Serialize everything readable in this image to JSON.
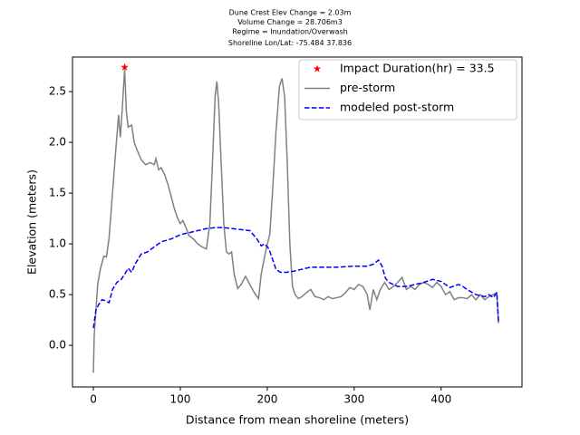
{
  "chart_data": {
    "type": "line",
    "title": [
      "Dune Crest Elev Change = 2.03m",
      "Volume Change = 28.706m3",
      "Regime = Inundation/Overwash",
      "Shoreline Lon/Lat: -75.484 37.836"
    ],
    "x_label": "Distance from mean shoreline (meters)",
    "y_label": "Elevation (meters)",
    "xlim": [
      -24,
      493
    ],
    "ylim": [
      -0.41,
      2.84
    ],
    "xticks": [
      0,
      100,
      200,
      300,
      400
    ],
    "yticks": [
      {
        "value": 0,
        "label": "0.0"
      },
      0.5,
      {
        "value": 1,
        "label": "1.0"
      },
      1.5,
      {
        "value": 2,
        "label": "2.0"
      },
      2.5
    ],
    "legend": "upper right",
    "series": [
      {
        "name": "Impact Duration(hr) = 33.5",
        "color": "#ff0000",
        "linestyle": "none",
        "marker": "star",
        "x": [
          36
        ],
        "values": [
          2.74
        ]
      },
      {
        "name": "pre-storm",
        "color": "#808080",
        "linestyle": "solid",
        "marker": "none",
        "x": [
          0,
          1,
          3,
          5,
          8,
          12,
          15,
          18,
          22,
          26,
          29,
          31,
          33,
          36,
          38,
          40,
          44,
          47,
          50,
          55,
          60,
          65,
          70,
          72,
          75,
          78,
          82,
          86,
          90,
          93,
          97,
          100,
          103,
          107,
          110,
          115,
          120,
          125,
          130,
          134,
          137,
          140,
          142,
          144,
          147,
          150,
          153,
          156,
          159,
          162,
          166,
          170,
          175,
          180,
          185,
          190,
          193,
          198,
          203,
          206,
          210,
          214,
          217,
          220,
          223,
          226,
          229,
          232,
          236,
          240,
          245,
          250,
          255,
          260,
          265,
          270,
          275,
          280,
          285,
          290,
          295,
          300,
          305,
          310,
          315,
          318,
          322,
          326,
          330,
          335,
          340,
          345,
          350,
          355,
          360,
          365,
          370,
          375,
          380,
          385,
          390,
          395,
          400,
          405,
          410,
          415,
          420,
          425,
          430,
          435,
          440,
          445,
          450,
          455,
          460,
          464,
          466
        ],
        "values": [
          -0.27,
          0.1,
          0.35,
          0.6,
          0.75,
          0.88,
          0.87,
          1.05,
          1.5,
          1.95,
          2.27,
          2.05,
          2.3,
          2.72,
          2.3,
          2.15,
          2.17,
          2.0,
          1.93,
          1.83,
          1.78,
          1.8,
          1.78,
          1.84,
          1.73,
          1.75,
          1.68,
          1.58,
          1.45,
          1.35,
          1.25,
          1.2,
          1.23,
          1.15,
          1.08,
          1.05,
          1.0,
          0.97,
          0.95,
          1.2,
          1.8,
          2.45,
          2.6,
          2.4,
          1.8,
          1.2,
          0.92,
          0.9,
          0.92,
          0.7,
          0.56,
          0.6,
          0.68,
          0.6,
          0.52,
          0.46,
          0.7,
          0.92,
          1.1,
          1.5,
          2.1,
          2.55,
          2.63,
          2.45,
          1.8,
          1.0,
          0.58,
          0.5,
          0.46,
          0.48,
          0.52,
          0.55,
          0.48,
          0.47,
          0.45,
          0.48,
          0.46,
          0.47,
          0.48,
          0.52,
          0.57,
          0.55,
          0.6,
          0.58,
          0.5,
          0.35,
          0.55,
          0.45,
          0.55,
          0.62,
          0.55,
          0.58,
          0.62,
          0.67,
          0.55,
          0.58,
          0.55,
          0.6,
          0.62,
          0.6,
          0.57,
          0.62,
          0.58,
          0.5,
          0.53,
          0.45,
          0.47,
          0.47,
          0.46,
          0.5,
          0.45,
          0.5,
          0.45,
          0.48,
          0.5,
          0.52,
          0.22
        ]
      },
      {
        "name": "modeled post-storm",
        "color": "#0000ff",
        "linestyle": "dashed",
        "marker": "none",
        "x": [
          0,
          3,
          6,
          10,
          14,
          18,
          22,
          27,
          32,
          36,
          40,
          44,
          48,
          55,
          62,
          70,
          78,
          90,
          100,
          110,
          120,
          130,
          140,
          150,
          160,
          170,
          180,
          188,
          193,
          197,
          202,
          206,
          210,
          215,
          222,
          230,
          240,
          250,
          260,
          280,
          300,
          315,
          322,
          328,
          332,
          336,
          340,
          350,
          360,
          370,
          380,
          390,
          400,
          410,
          420,
          425,
          430,
          440,
          450,
          455,
          460,
          464,
          466
        ],
        "values": [
          0.17,
          0.35,
          0.4,
          0.45,
          0.44,
          0.42,
          0.55,
          0.62,
          0.65,
          0.7,
          0.76,
          0.72,
          0.8,
          0.9,
          0.92,
          0.97,
          1.02,
          1.05,
          1.09,
          1.11,
          1.13,
          1.15,
          1.16,
          1.16,
          1.15,
          1.14,
          1.13,
          1.05,
          0.98,
          1.0,
          0.95,
          0.85,
          0.75,
          0.72,
          0.72,
          0.73,
          0.75,
          0.77,
          0.77,
          0.77,
          0.78,
          0.78,
          0.8,
          0.84,
          0.78,
          0.66,
          0.62,
          0.58,
          0.58,
          0.6,
          0.62,
          0.65,
          0.63,
          0.57,
          0.6,
          0.58,
          0.55,
          0.5,
          0.48,
          0.5,
          0.47,
          0.52,
          0.22
        ]
      }
    ]
  }
}
